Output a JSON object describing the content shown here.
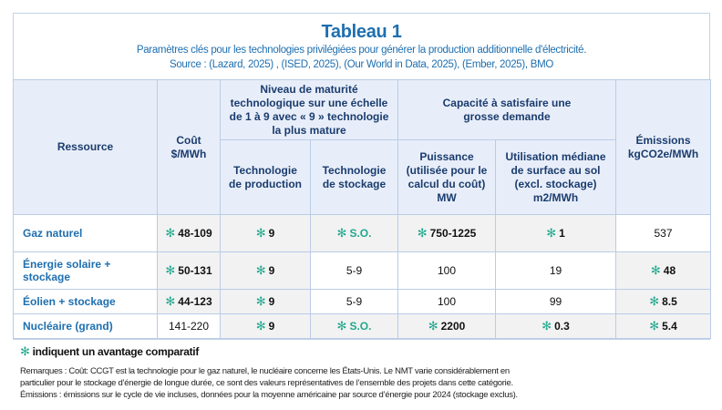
{
  "title": "Tableau 1",
  "subtitle": "Paramètres clés pour les technologies privilégiées pour générer la production additionnelle d'électricité.",
  "source": "Source : (Lazard, 2025) , (ISED, 2025), (Our World in Data, 2025), (Ember, 2025), BMO",
  "advantage_icon": "asterisk-icon",
  "colors": {
    "title": "#1e6fb0",
    "header_bg": "#e8eef9",
    "advantage_bg": "#f2f2f2",
    "advantage_star": "#22a88e",
    "border": "#b9cce6"
  },
  "headers": {
    "ressource": "Ressource",
    "cout": "Coût $/MWh",
    "maturite": "Niveau de maturité technologique sur une échelle de 1 à 9 avec « 9 » technologie la plus mature",
    "tech_production": "Technologie de production",
    "tech_stockage": "Technologie de stockage",
    "capacite": "Capacité à satisfaire une grosse demande",
    "puissance": "Puissance (utilisée pour le calcul du coût) MW",
    "utilisation": "Utilisation médiane de surface au sol (excl. stockage) m2/MWh",
    "emissions": "Émissions kgCO2e/MWh"
  },
  "rows": [
    {
      "ressource": "Gaz naturel",
      "cout": {
        "value": "48-109",
        "advantage": true
      },
      "tech_production": {
        "value": "9",
        "advantage": true
      },
      "tech_stockage": {
        "value": "S.O.",
        "advantage": true
      },
      "puissance": {
        "value": "750-1225",
        "advantage": true
      },
      "utilisation": {
        "value": "1",
        "advantage": true
      },
      "emissions": {
        "value": "537",
        "advantage": false
      }
    },
    {
      "ressource": "Énergie solaire + stockage",
      "cout": {
        "value": "50-131",
        "advantage": true
      },
      "tech_production": {
        "value": "9",
        "advantage": true
      },
      "tech_stockage": {
        "value": "5-9",
        "advantage": false
      },
      "puissance": {
        "value": "100",
        "advantage": false
      },
      "utilisation": {
        "value": "19",
        "advantage": false
      },
      "emissions": {
        "value": "48",
        "advantage": true
      }
    },
    {
      "ressource": "Éolien + stockage",
      "cout": {
        "value": "44-123",
        "advantage": true
      },
      "tech_production": {
        "value": "9",
        "advantage": true
      },
      "tech_stockage": {
        "value": "5-9",
        "advantage": false
      },
      "puissance": {
        "value": "100",
        "advantage": false
      },
      "utilisation": {
        "value": "99",
        "advantage": false
      },
      "emissions": {
        "value": "8.5",
        "advantage": true
      }
    },
    {
      "ressource": "Nucléaire (grand)",
      "cout": {
        "value": "141-220",
        "advantage": false
      },
      "tech_production": {
        "value": "9",
        "advantage": true
      },
      "tech_stockage": {
        "value": "S.O.",
        "advantage": true
      },
      "puissance": {
        "value": "2200",
        "advantage": true
      },
      "utilisation": {
        "value": "0.3",
        "advantage": true
      },
      "emissions": {
        "value": "5.4",
        "advantage": true
      }
    }
  ],
  "legend": "indiquent un avantage comparatif",
  "remarks": [
    "Remarques : Coût: CCGT est la technologie pour le gaz naturel, le nucléaire concerne les États-Unis. Le NMT varie considérablement en",
    "particulier pour le stockage d’énergie de longue durée, ce sont des valeurs représentatives de l’ensemble des projets dans cette catégorie.",
    "Émissions : émissions sur le cycle de vie incluses, données pour la moyenne américaine par source d’énergie pour 2024 (stockage exclus)."
  ]
}
